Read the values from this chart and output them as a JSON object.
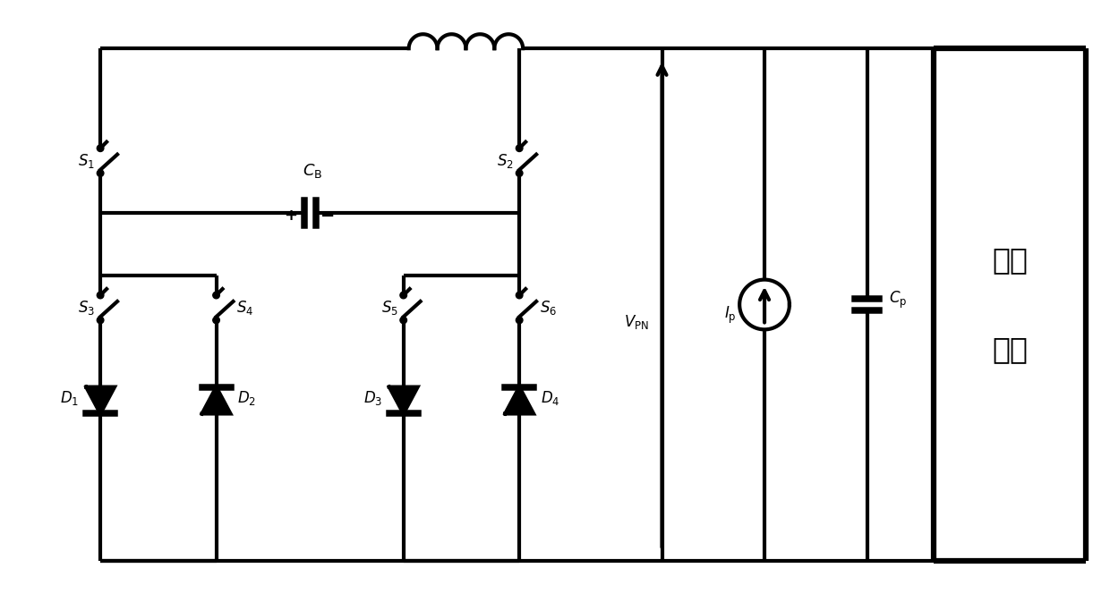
{
  "bg_color": "#ffffff",
  "line_color": "#000000",
  "lw": 3.0,
  "fig_width": 12.4,
  "fig_height": 6.73
}
